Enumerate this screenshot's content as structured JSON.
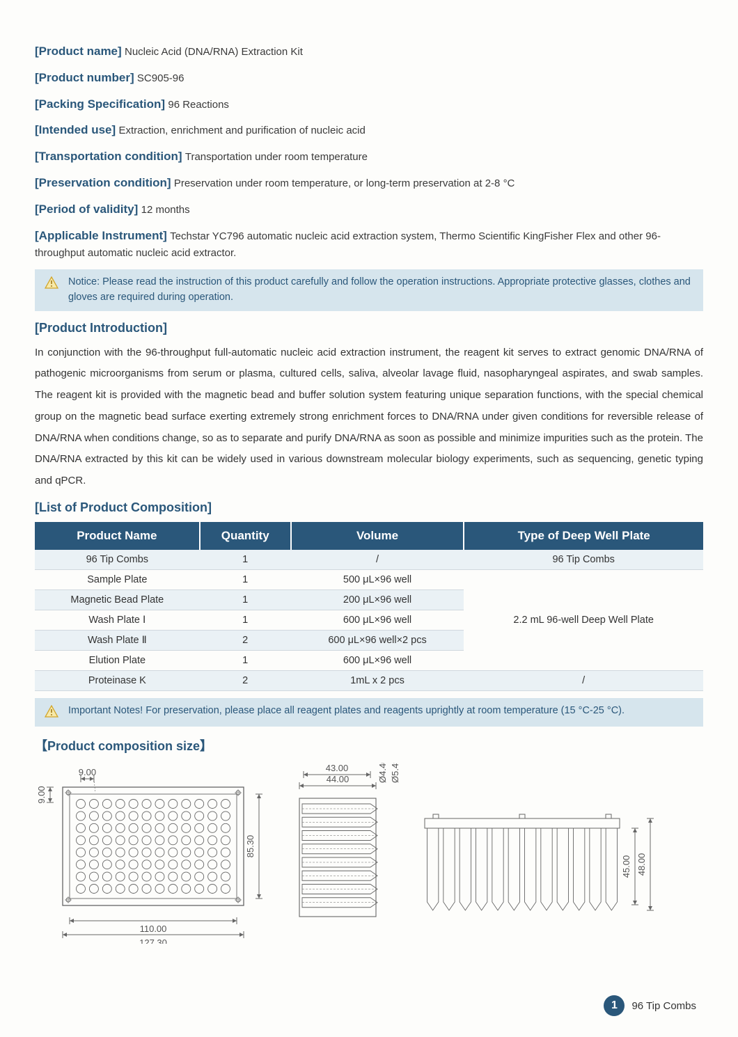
{
  "fields": [
    {
      "label": "[Product name]",
      "value": "Nucleic Acid (DNA/RNA) Extraction Kit"
    },
    {
      "label": "[Product number]",
      "value": "SC905-96"
    },
    {
      "label": "[Packing Specification]",
      "value": "96 Reactions"
    },
    {
      "label": "[Intended use]",
      "value": "Extraction, enrichment and purification of nucleic acid"
    },
    {
      "label": "[Transportation condition]",
      "value": "Transportation under room temperature"
    },
    {
      "label": "[Preservation condition]",
      "value": "Preservation under room temperature, or long-term preservation at 2-8 °C"
    },
    {
      "label": "[Period of validity]",
      "value": "12 months"
    },
    {
      "label": "[Applicable Instrument]",
      "value": "Techstar YC796 automatic nucleic acid extraction system, Thermo Scientific KingFisher Flex and other 96-throughput automatic nucleic acid extractor."
    }
  ],
  "notice1": "Notice: Please read the instruction of this product carefully and follow the operation instructions. Appropriate protective glasses, clothes and gloves are required during operation.",
  "section_intro_header": "[Product Introduction]",
  "intro_text": "In conjunction with the 96-throughput full-automatic nucleic acid extraction instrument, the reagent kit serves to extract genomic DNA/RNA of pathogenic microorganisms from serum or plasma, cultured cells, saliva, alveolar lavage fluid, nasopharyngeal aspirates, and swab samples. The reagent kit is provided with the magnetic bead and buffer solution system featuring unique separation functions, with the special chemical group on the magnetic bead surface exerting extremely strong enrichment forces to DNA/RNA under given conditions for reversible release of DNA/RNA when conditions change, so as to separate and purify DNA/RNA as soon as possible and minimize impurities such as the protein. The DNA/RNA extracted by this kit can be widely used in various downstream molecular biology experiments, such as sequencing, genetic typing and qPCR.",
  "section_list_header": "[List of Product Composition]",
  "table": {
    "headers": [
      "Product Name",
      "Quantity",
      "Volume",
      "Type of Deep Well Plate"
    ],
    "rows": [
      [
        "96 Tip Combs",
        "1",
        "/",
        "96 Tip Combs"
      ],
      [
        "Sample Plate",
        "1",
        "500 μL×96 well",
        null
      ],
      [
        "Magnetic Bead Plate",
        "1",
        "200 μL×96 well",
        null
      ],
      [
        "Wash Plate Ⅰ",
        "1",
        "600 μL×96 well",
        "2.2 mL 96-well Deep Well Plate"
      ],
      [
        "Wash Plate Ⅱ",
        "2",
        "600 μL×96 well×2 pcs",
        null
      ],
      [
        "Elution Plate",
        "1",
        "600 μL×96 well",
        null
      ],
      [
        "Proteinase K",
        "2",
        "1mL x 2 pcs",
        "/"
      ]
    ]
  },
  "notice2": "Important Notes! For preservation, please place all reagent plates and reagents uprightly at room temperature (15 °C-25 °C).",
  "section_size_header": "【Product composition size】",
  "diagram": {
    "stroke": "#666666",
    "text_color": "#555555",
    "font_size": 13,
    "plate": {
      "outer_w": "127.30",
      "inner_w": "110.00",
      "pitch": "9.00",
      "margin": "9.00",
      "height": "85.30",
      "rows": 8,
      "cols": 12
    },
    "side_view": {
      "w43": "43.00",
      "w44": "44.00",
      "d1": "Ø4.40",
      "d2": "Ø5.49"
    },
    "cross_view": {
      "h1": "45.00",
      "h2": "48.00"
    }
  },
  "footer": {
    "num": "1",
    "label": "96 Tip Combs"
  },
  "colors": {
    "primary": "#2a577a",
    "notice_bg": "#d6e5ed",
    "row_odd": "#eaf1f5",
    "warn_border": "#d1a52a",
    "warn_fill": "#f7e9aa"
  }
}
